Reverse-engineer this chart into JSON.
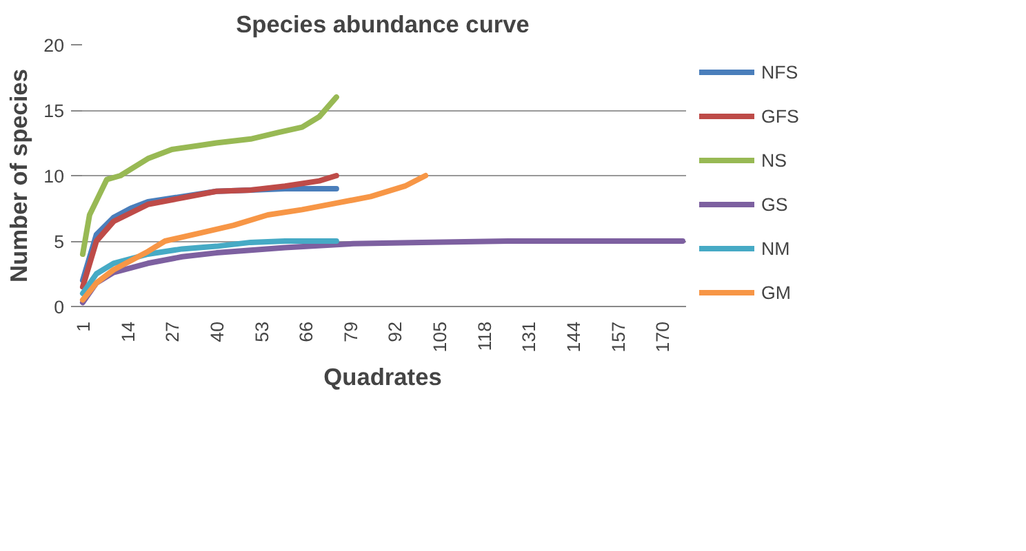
{
  "chart_data": {
    "type": "line",
    "title": "Species abundance curve",
    "xlabel": "Quadrates",
    "ylabel": "Number of species",
    "xlim": [
      0,
      177
    ],
    "xticks": [
      1,
      14,
      27,
      40,
      53,
      66,
      79,
      92,
      105,
      118,
      131,
      144,
      157,
      170
    ],
    "ylim": [
      0,
      20
    ],
    "yticks": [
      0,
      5,
      10,
      15,
      20
    ],
    "grid": "y",
    "legend": "right",
    "marker": "none",
    "line_style": "solid",
    "series": [
      {
        "name": "NFS",
        "color": "#4a7ebb",
        "x": [
          1,
          5,
          10,
          15,
          20,
          30,
          40,
          50,
          60,
          75
        ],
        "values": [
          2,
          5.5,
          6.8,
          7.5,
          8,
          8.4,
          8.8,
          8.9,
          9,
          9
        ]
      },
      {
        "name": "GFS",
        "color": "#be4b48",
        "x": [
          1,
          5,
          10,
          20,
          30,
          40,
          50,
          60,
          70,
          75
        ],
        "values": [
          1.5,
          5,
          6.5,
          7.8,
          8.3,
          8.8,
          8.9,
          9.2,
          9.6,
          10
        ]
      },
      {
        "name": "NS",
        "color": "#98b954",
        "x": [
          1,
          3,
          8,
          12,
          20,
          27,
          35,
          40,
          50,
          58,
          65,
          70,
          75
        ],
        "values": [
          4,
          7,
          9.7,
          10,
          11.3,
          12,
          12.3,
          12.5,
          12.8,
          13.3,
          13.7,
          14.5,
          16
        ]
      },
      {
        "name": "GS",
        "color": "#7d60a0",
        "x": [
          1,
          5,
          10,
          20,
          30,
          40,
          60,
          80,
          100,
          125,
          150,
          176
        ],
        "values": [
          0.3,
          1.8,
          2.6,
          3.3,
          3.8,
          4.1,
          4.5,
          4.8,
          4.9,
          5,
          5,
          5
        ]
      },
      {
        "name": "NM",
        "color": "#46aac5",
        "x": [
          1,
          5,
          10,
          20,
          30,
          40,
          50,
          60,
          75
        ],
        "values": [
          1,
          2.5,
          3.3,
          4,
          4.4,
          4.6,
          4.9,
          5,
          5
        ]
      },
      {
        "name": "GM",
        "color": "#f79646",
        "x": [
          1,
          5,
          10,
          20,
          25,
          35,
          45,
          55,
          65,
          75,
          85,
          95,
          101
        ],
        "values": [
          0.5,
          1.8,
          2.8,
          4.2,
          5,
          5.6,
          6.2,
          7,
          7.4,
          7.9,
          8.4,
          9.2,
          10
        ]
      }
    ]
  }
}
